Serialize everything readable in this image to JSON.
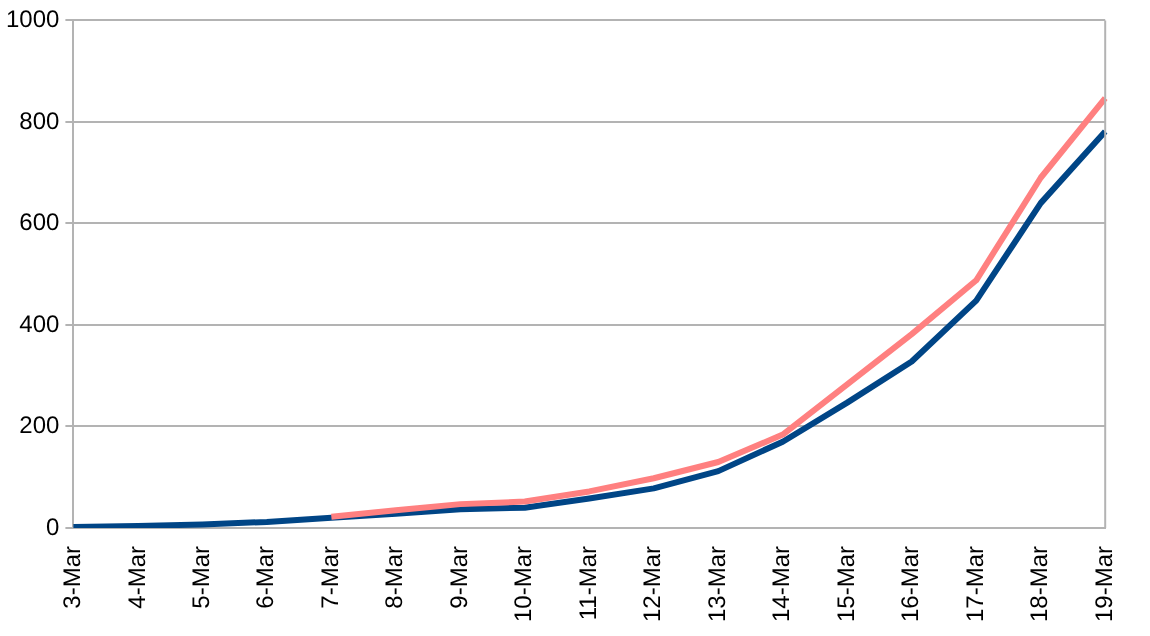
{
  "chart_data": {
    "type": "line",
    "categories": [
      "3-Mar",
      "4-Mar",
      "5-Mar",
      "6-Mar",
      "7-Mar",
      "8-Mar",
      "9-Mar",
      "10-Mar",
      "11-Mar",
      "12-Mar",
      "13-Mar",
      "14-Mar",
      "15-Mar",
      "16-Mar",
      "17-Mar",
      "18-Mar",
      "19-Mar"
    ],
    "series": [
      {
        "color": "#ff8080",
        "values": [
          null,
          null,
          null,
          null,
          22,
          35,
          47,
          52,
          72,
          98,
          130,
          184,
          283,
          382,
          488,
          690,
          847
        ]
      },
      {
        "color": "#004586",
        "values": [
          2,
          4,
          7,
          12,
          20,
          28,
          37,
          40,
          58,
          78,
          112,
          170,
          247,
          328,
          448,
          640,
          781
        ]
      }
    ],
    "ylim": [
      0,
      1000
    ],
    "yticks": [
      0,
      200,
      400,
      600,
      800,
      1000
    ],
    "grid": "y",
    "legend": false,
    "marker": "none",
    "line_style": "solid"
  }
}
